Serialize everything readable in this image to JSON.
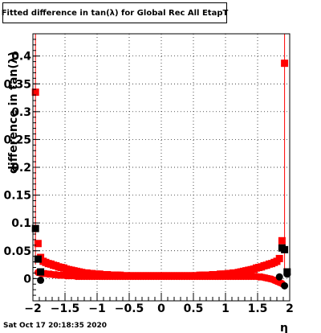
{
  "chart_data": {
    "type": "scatter",
    "title": "Fitted difference in tan(λ) for Global Rec All EtapT",
    "xlabel": "η",
    "ylabel": "difference in tan(λ)",
    "xlim": [
      -2,
      2
    ],
    "ylim": [
      -0.04,
      0.44
    ],
    "x_ticks": [
      "−2",
      "−1.5",
      "−1",
      "−0.5",
      "0",
      "0.5",
      "1",
      "1.5",
      "2"
    ],
    "y_ticks": [
      "0",
      "0.05",
      "0.1",
      "0.15",
      "0.2",
      "0.25",
      "0.3",
      "0.35",
      "0.4"
    ],
    "grid": true,
    "series": [
      {
        "color": "#ff0000",
        "x": [
          -1.96,
          -1.92,
          -1.88,
          -1.84,
          -1.8,
          -1.76,
          -1.72,
          -1.68,
          -1.64,
          -1.6,
          -1.56,
          -1.52,
          -1.48,
          -1.44,
          -1.4,
          -1.36,
          -1.32,
          -1.28,
          -1.24,
          -1.2,
          -1.16,
          -1.12,
          -1.08,
          -1.04,
          -1,
          -0.96,
          -0.92,
          -0.88,
          -0.84,
          -0.8,
          -0.76,
          -0.72,
          -0.68,
          -0.64,
          -0.6,
          -0.56,
          -0.52,
          -0.48,
          -0.44,
          -0.4,
          -0.36,
          -0.32,
          -0.28,
          -0.24,
          -0.2,
          -0.16,
          -0.12,
          -0.08,
          -0.04,
          0,
          0.04,
          0.08,
          0.12,
          0.16,
          0.2,
          0.24,
          0.28,
          0.32,
          0.36,
          0.4,
          0.44,
          0.48,
          0.52,
          0.56,
          0.6,
          0.64,
          0.68,
          0.72,
          0.76,
          0.8,
          0.84,
          0.88,
          0.92,
          0.96,
          1,
          1.04,
          1.08,
          1.12,
          1.16,
          1.2,
          1.24,
          1.28,
          1.32,
          1.36,
          1.4,
          1.44,
          1.48,
          1.52,
          1.56,
          1.6,
          1.64,
          1.68,
          1.72,
          1.76,
          1.8,
          1.84,
          1.88,
          1.92
        ],
        "y": [
          0.335,
          0.063,
          0.038,
          0.031,
          0.029,
          0.027,
          0.026,
          0.024,
          0.023,
          0.021,
          0.02,
          0.019,
          0.017,
          0.016,
          0.015,
          0.014,
          0.013,
          0.012,
          0.011,
          0.01,
          0.01,
          0.009,
          0.009,
          0.008,
          0.008,
          0.008,
          0.007,
          0.007,
          0.007,
          0.006,
          0.006,
          0.006,
          0.006,
          0.006,
          0.005,
          0.005,
          0.005,
          0.005,
          0.005,
          0.005,
          0.005,
          0.005,
          0.005,
          0.005,
          0.005,
          0.005,
          0.005,
          0.005,
          0.005,
          0.005,
          0.005,
          0.005,
          0.005,
          0.005,
          0.005,
          0.005,
          0.005,
          0.005,
          0.005,
          0.005,
          0.005,
          0.005,
          0.005,
          0.005,
          0.006,
          0.006,
          0.006,
          0.006,
          0.006,
          0.007,
          0.007,
          0.007,
          0.008,
          0.008,
          0.008,
          0.009,
          0.009,
          0.01,
          0.01,
          0.011,
          0.012,
          0.013,
          0.014,
          0.015,
          0.016,
          0.017,
          0.019,
          0.02,
          0.021,
          0.023,
          0.024,
          0.026,
          0.027,
          0.029,
          0.031,
          0.036,
          0.068,
          0.387
        ]
      },
      {
        "color": "#ff0000",
        "x": [
          -1.92,
          -1.88,
          -1.84,
          -1.8,
          -1.76,
          -1.72,
          -1.68,
          -1.64,
          -1.6,
          -1.56,
          -1.52,
          -1.48,
          -1.44,
          -1.4,
          -1.36,
          -1.32,
          -1.28,
          -1.24,
          -1.2,
          -1.16,
          -1.12,
          -1.08,
          -1.04,
          -1,
          -0.96,
          -0.92,
          -0.88,
          -0.84,
          -0.8,
          -0.76,
          -0.72,
          -0.68,
          -0.64,
          -0.6,
          -0.56,
          -0.52,
          -0.48,
          -0.44,
          -0.4,
          -0.36,
          -0.32,
          -0.28,
          -0.24,
          -0.2,
          -0.16,
          -0.12,
          -0.08,
          -0.04,
          0,
          0.04,
          0.08,
          0.12,
          0.16,
          0.2,
          0.24,
          0.28,
          0.32,
          0.36,
          0.4,
          0.44,
          0.48,
          0.52,
          0.56,
          0.6,
          0.64,
          0.68,
          0.72,
          0.76,
          0.8,
          0.84,
          0.88,
          0.92,
          0.96,
          1,
          1.04,
          1.08,
          1.12,
          1.16,
          1.2,
          1.24,
          1.28,
          1.32,
          1.36,
          1.4,
          1.44,
          1.48,
          1.52,
          1.56,
          1.6,
          1.64,
          1.68,
          1.72,
          1.76,
          1.8,
          1.84,
          1.88
        ],
        "y": [
          0.011,
          0.01,
          0.009,
          0.009,
          0.008,
          0.008,
          0.007,
          0.007,
          0.006,
          0.006,
          0.006,
          0.005,
          0.005,
          0.005,
          0.005,
          0.004,
          0.004,
          0.004,
          0.004,
          0.004,
          0.004,
          0.004,
          0.004,
          0.004,
          0.004,
          0.004,
          0.004,
          0.004,
          0.004,
          0.004,
          0.004,
          0.004,
          0.004,
          0.004,
          0.004,
          0.004,
          0.004,
          0.004,
          0.004,
          0.004,
          0.004,
          0.004,
          0.004,
          0.004,
          0.004,
          0.004,
          0.004,
          0.004,
          0.004,
          0.004,
          0.004,
          0.004,
          0.004,
          0.004,
          0.004,
          0.004,
          0.004,
          0.004,
          0.004,
          0.004,
          0.004,
          0.004,
          0.004,
          0.004,
          0.004,
          0.004,
          0.004,
          0.004,
          0.004,
          0.004,
          0.004,
          0.004,
          0.004,
          0.004,
          0.004,
          0.004,
          0.004,
          0.004,
          0.004,
          0.004,
          0.004,
          0.004,
          0.004,
          0.004,
          0.004,
          0.004,
          0.003,
          0.003,
          0.002,
          0.001,
          0,
          -0.001,
          -0.003,
          -0.005,
          -0.007,
          -0.009
        ]
      },
      {
        "color": "#000000",
        "x": [
          -1.96,
          -1.92,
          -1.88,
          1.88,
          1.92,
          1.96
        ],
        "y": [
          0.09,
          0.035,
          0.012,
          0.055,
          0.052,
          0.012
        ]
      },
      {
        "color": "#000000",
        "x": [
          -1.88,
          1.84,
          1.92,
          1.96
        ],
        "y": [
          -0.003,
          0.003,
          -0.013,
          0.008
        ]
      }
    ]
  },
  "footer": {
    "date": "Sat Oct 17 20:18:35 2020"
  }
}
